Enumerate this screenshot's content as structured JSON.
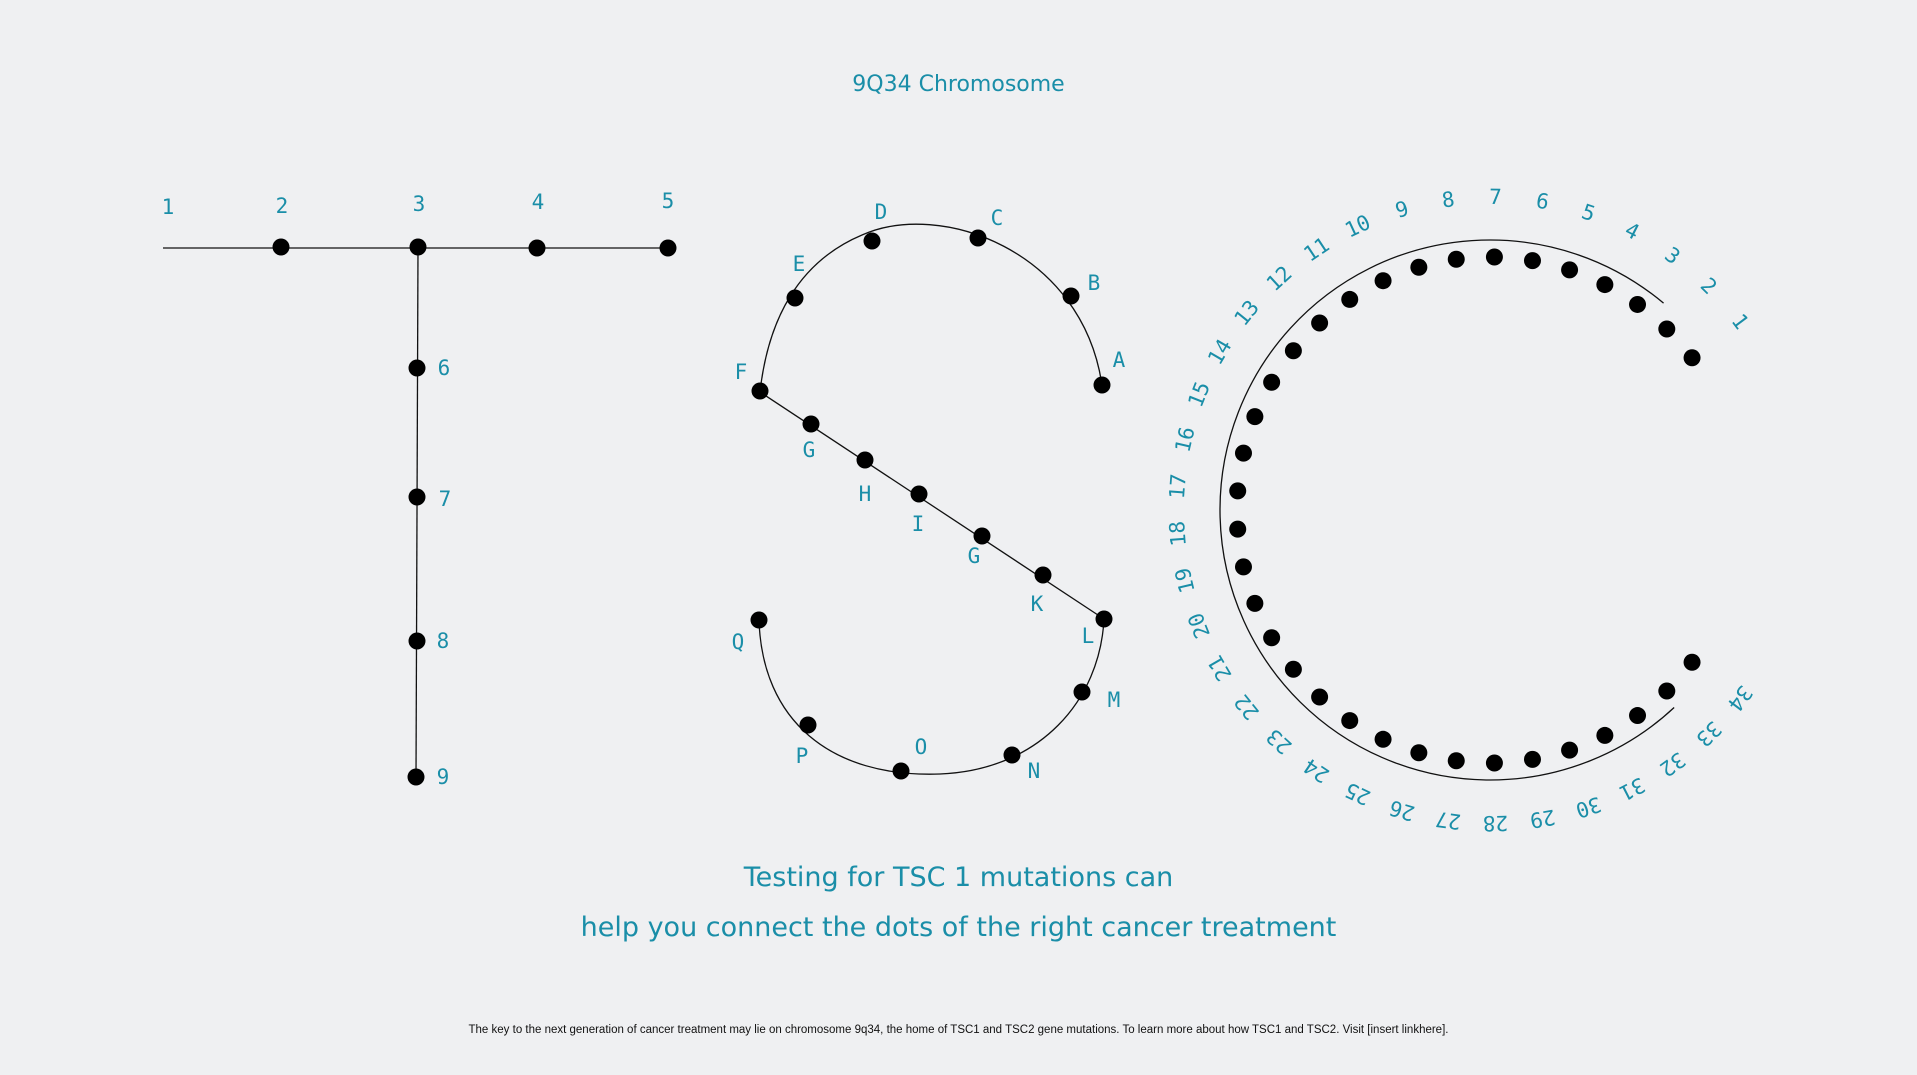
{
  "title": "9Q34 Chromosome",
  "headline_line1": "Testing for TSC 1 mutations can",
  "headline_line2": "help you connect the dots of the right cancer treatment",
  "footer": "The key to the next generation of cancer treatment may lie on chromosome 9q34, the home of TSC1 and TSC2 gene mutations. To learn more about how TSC1 and TSC2. Visit [insert linkhere].",
  "colors": {
    "accent": "#1a8ea8",
    "dot": "#000000",
    "line": "#111111",
    "background": "#eff0f2"
  },
  "t_labels": [
    "1",
    "2",
    "3",
    "4",
    "5",
    "6",
    "7",
    "8",
    "9"
  ],
  "s_labels": [
    "A",
    "B",
    "C",
    "D",
    "E",
    "F",
    "G",
    "H",
    "I",
    "G",
    "K",
    "L",
    "M",
    "N",
    "O",
    "P",
    "Q"
  ],
  "c_labels": [
    "1",
    "2",
    "3",
    "4",
    "5",
    "6",
    "7",
    "8",
    "9",
    "10",
    "11",
    "12",
    "13",
    "14",
    "15",
    "16",
    "17",
    "18",
    "19",
    "20",
    "21",
    "22",
    "23",
    "24",
    "25",
    "26",
    "27",
    "28",
    "29",
    "30",
    "31",
    "32",
    "33",
    "34"
  ]
}
